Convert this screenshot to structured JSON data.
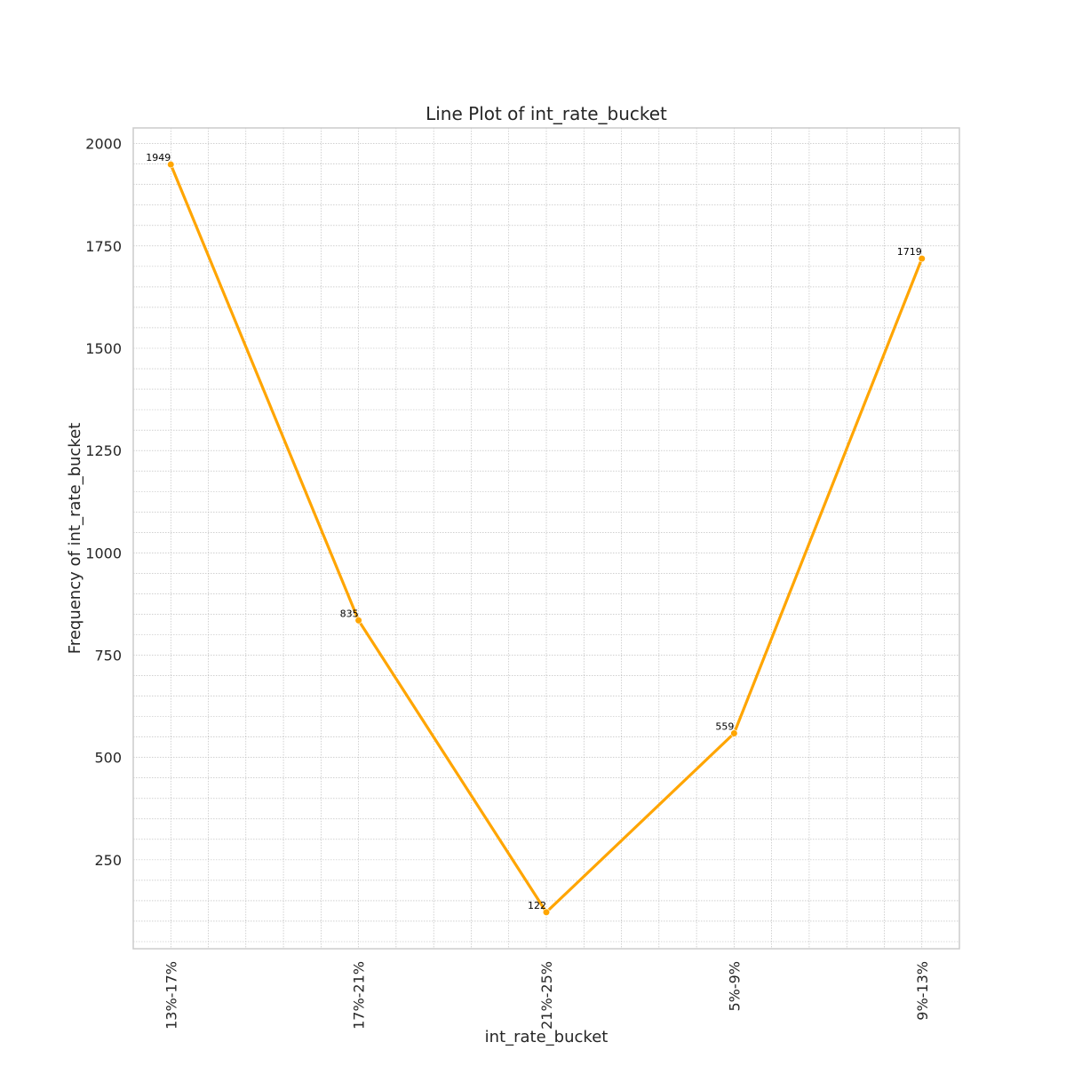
{
  "chart_data": {
    "type": "line",
    "title": "Line Plot of int_rate_bucket",
    "xlabel": "int_rate_bucket",
    "ylabel": "Frequency of int_rate_bucket",
    "categories": [
      "13%-17%",
      "17%-21%",
      "21%-25%",
      "5%-9%",
      "9%-13%"
    ],
    "series": [
      {
        "values": [
          1949,
          835,
          122,
          559,
          1719
        ],
        "color": "#FFA500"
      }
    ],
    "data_labels": [
      "1949",
      "835",
      "122",
      "559",
      "1719"
    ],
    "ylim": [
      32.65,
      2038.35
    ],
    "yticks": [
      250,
      500,
      750,
      1000,
      1250,
      1500,
      1750,
      2000
    ],
    "ytick_labels": [
      "250",
      "500",
      "750",
      "1000",
      "1250",
      "1500",
      "1750",
      "2000"
    ],
    "x_tick_rotation": "vertical",
    "grid": "major and minor, dotted",
    "legend": "none"
  }
}
